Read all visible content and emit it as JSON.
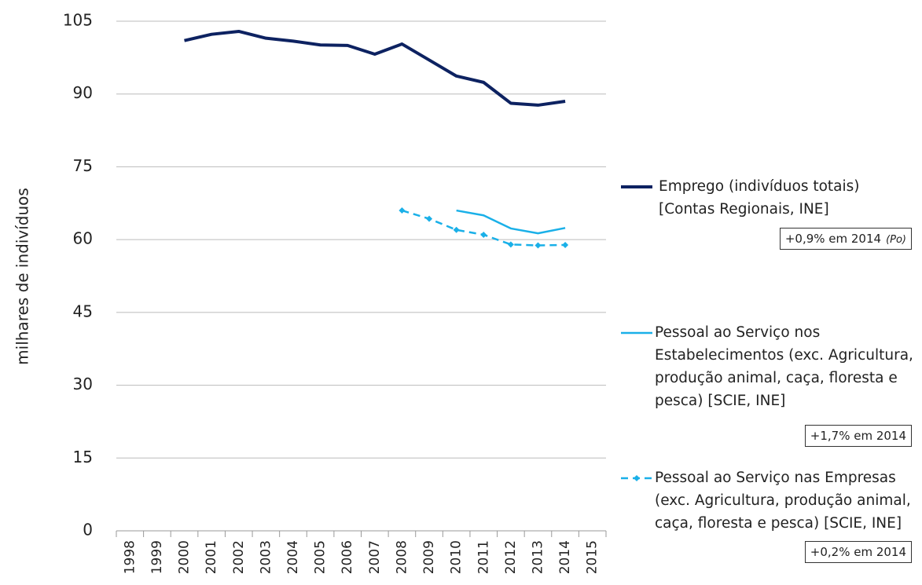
{
  "chart_data": {
    "type": "line",
    "y_label": "milhares de indivíduos",
    "categories": [
      "1998",
      "1999",
      "2000",
      "2001",
      "2002",
      "2003",
      "2004",
      "2005",
      "2006",
      "2007",
      "2008",
      "2009",
      "2010",
      "2011",
      "2012",
      "2013",
      "2014",
      "2015"
    ],
    "series": [
      {
        "name": "Emprego (indivíduos totais) [Contas Regionais, INE]",
        "color": "#0d2261",
        "width": 4,
        "dashed": false,
        "marker": false,
        "values": [
          null,
          null,
          101.0,
          102.3,
          102.9,
          101.5,
          100.9,
          100.1,
          100.0,
          98.2,
          100.3,
          97.0,
          93.7,
          92.4,
          88.1,
          87.7,
          88.5,
          null
        ],
        "annotation": "+0,9% em 2014",
        "annotation_note": "(Po)"
      },
      {
        "name": "Pessoal ao Serviço nos Estabelecimentos (exc. Agricultura, produção animal, caça, floresta e pesca) [SCIE, INE]",
        "color": "#1ab0e8",
        "width": 2.5,
        "dashed": false,
        "marker": false,
        "values": [
          null,
          null,
          null,
          null,
          null,
          null,
          null,
          null,
          null,
          null,
          null,
          null,
          66.0,
          65.0,
          62.3,
          61.3,
          62.4,
          null
        ],
        "annotation": "+1,7% em 2014"
      },
      {
        "name": "Pessoal ao Serviço nas Empresas (exc. Agricultura, produção animal, caça, floresta e pesca) [SCIE, INE]",
        "color": "#1ab0e8",
        "width": 2.5,
        "dashed": true,
        "marker": true,
        "values": [
          null,
          null,
          null,
          null,
          null,
          null,
          null,
          null,
          null,
          null,
          66.0,
          64.3,
          62.0,
          61.0,
          59.0,
          58.8,
          58.9,
          null
        ],
        "annotation": "+0,2% em 2014"
      }
    ],
    "ylim": [
      0,
      105
    ],
    "yticks": [
      0,
      15,
      30,
      45,
      60,
      75,
      90,
      105
    ],
    "grid": true
  }
}
